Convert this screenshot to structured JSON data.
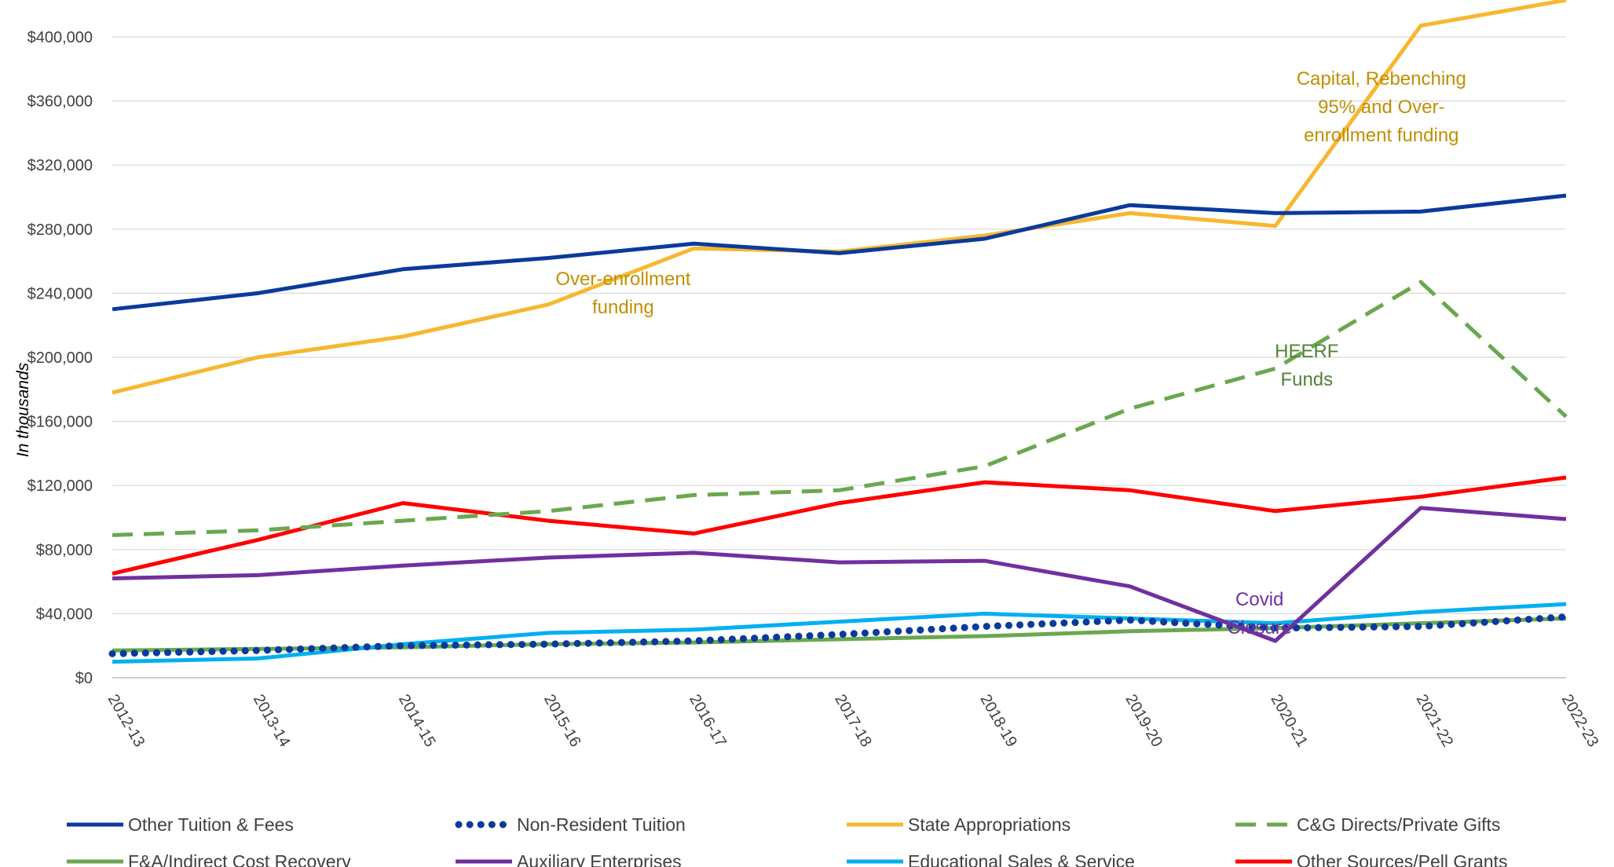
{
  "chart_data": {
    "type": "line",
    "ylabel": "In thousands",
    "ylim": [
      0,
      400000
    ],
    "y_ticks": [
      "$0",
      "$40,000",
      "$80,000",
      "$120,000",
      "$160,000",
      "$200,000",
      "$240,000",
      "$280,000",
      "$320,000",
      "$360,000",
      "$400,000"
    ],
    "categories": [
      "2012-13",
      "2013-14",
      "2014-15",
      "2015-16",
      "2016-17",
      "2017-18",
      "2018-19",
      "2019-20",
      "2020-21",
      "2021-22",
      "2022-23"
    ],
    "grid": true,
    "legend_position": "bottom",
    "series": [
      {
        "name": "Other Tuition & Fees",
        "color": "#0a3a9c",
        "style": "solid",
        "values": [
          230000,
          240000,
          255000,
          262000,
          271000,
          265000,
          274000,
          295000,
          290000,
          291000,
          301000
        ]
      },
      {
        "name": "Non-Resident Tuition",
        "color": "#0a3a9c",
        "style": "dotted",
        "values": [
          15000,
          17000,
          20000,
          21000,
          23000,
          27000,
          32000,
          36000,
          31000,
          32000,
          38000
        ]
      },
      {
        "name": "State Appropriations",
        "color": "#f7b731",
        "style": "solid",
        "values": [
          178000,
          200000,
          213000,
          233000,
          268000,
          266000,
          276000,
          290000,
          282000,
          407000,
          423000
        ]
      },
      {
        "name": "C&G Directs/Private Gifts",
        "color": "#6aa84f",
        "style": "dashed",
        "values": [
          89000,
          92000,
          98000,
          104000,
          114000,
          117000,
          132000,
          168000,
          193000,
          247000,
          163000
        ]
      },
      {
        "name": "F&A/Indirect Cost Recovery",
        "color": "#6aa84f",
        "style": "solid",
        "values": [
          17000,
          18000,
          19000,
          21000,
          22000,
          24000,
          26000,
          29000,
          31000,
          34000,
          37000
        ]
      },
      {
        "name": "Auxiliary Enterprises",
        "color": "#7030a0",
        "style": "solid",
        "values": [
          62000,
          64000,
          70000,
          75000,
          78000,
          72000,
          73000,
          57000,
          23000,
          106000,
          99000
        ]
      },
      {
        "name": "Educational Sales & Service",
        "color": "#00b0f0",
        "style": "solid",
        "values": [
          10000,
          12000,
          21000,
          28000,
          30000,
          35000,
          40000,
          37000,
          34000,
          41000,
          46000
        ]
      },
      {
        "name": "Other Sources/Pell Grants",
        "color": "#ff0000",
        "style": "solid",
        "values": [
          65000,
          86000,
          109000,
          98000,
          90000,
          109000,
          122000,
          117000,
          104000,
          113000,
          125000
        ]
      }
    ],
    "annotations": [
      {
        "text_lines": [
          "Capital,  Rebenching",
          "95%  and Over-",
          "enrollment funding"
        ],
        "color": "#c09000",
        "at_category": "2020-21",
        "at_value": 370000
      },
      {
        "text_lines": [
          "Over-enrollment",
          "funding"
        ],
        "color": "#c09000",
        "at_category": "2016-17",
        "at_value": 245000
      },
      {
        "text_lines": [
          "HEERF",
          "Funds"
        ],
        "color": "#548235",
        "at_category": "2020-21",
        "at_value": 200000
      },
      {
        "text_lines": [
          "Covid",
          "Closure"
        ],
        "color": "#7030a0",
        "at_category": "2019-20",
        "at_value": 45000
      }
    ]
  }
}
